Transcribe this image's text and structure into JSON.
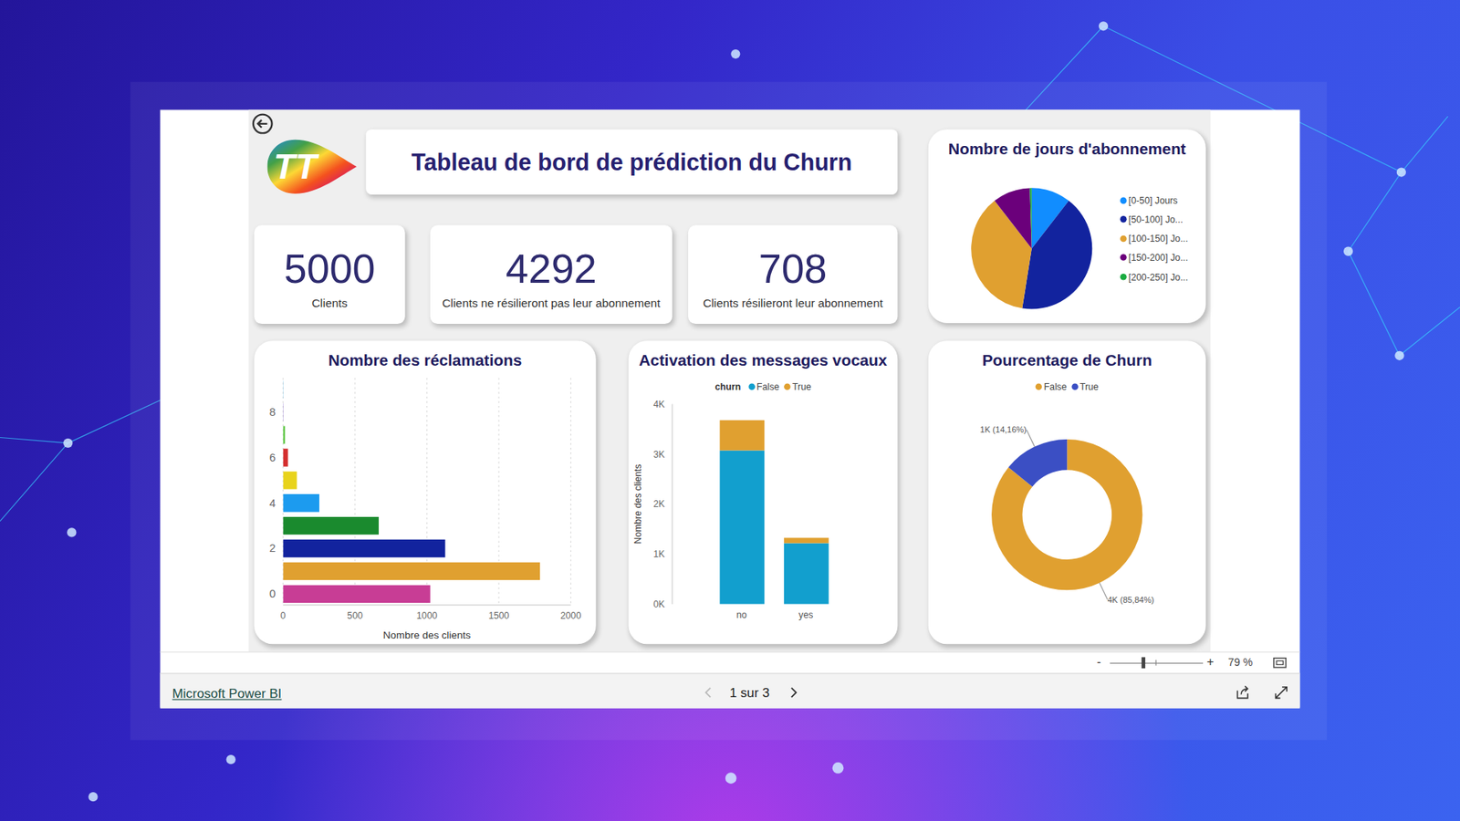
{
  "header": {
    "logo": "TT",
    "title": "Tableau de bord de prédiction du Churn"
  },
  "cards": [
    {
      "value": 5000,
      "label": "Clients"
    },
    {
      "value": 4292,
      "label": "Clients ne résilieront pas leur abonnement"
    },
    {
      "value": 708,
      "label": "Clients résilieront leur abonnement"
    }
  ],
  "chart_data": [
    {
      "type": "pie",
      "title": "Nombre de jours d'abonnement",
      "categories": [
        "[0-50] Jours",
        "[50-100] Jo...",
        "[100-150] Jo...",
        "[150-200] Jo...",
        "[200-250] Jo..."
      ],
      "values": [
        525,
        2100,
        1850,
        500,
        25
      ],
      "colors": [
        "#118DFF",
        "#12239E",
        "#E0A030",
        "#6B007B",
        "#1AAB40"
      ],
      "legend": "right"
    },
    {
      "type": "bar",
      "title": "Nombre des réclamations",
      "orientation": "horizontal",
      "categories": [
        "0",
        null,
        "2",
        null,
        "4",
        null,
        "6",
        null,
        "8",
        null
      ],
      "values": [
        1023,
        1786,
        1127,
        665,
        252,
        96,
        34,
        13,
        2,
        2
      ],
      "colors": [
        "#C83D95",
        "#E0A030",
        "#12239E",
        "#1A8A2E",
        "#1C9BEF",
        "#E8D31C",
        "#D42E2E",
        "#56C43A",
        "#744EC2",
        "#5FB8E8"
      ],
      "xlim": [
        0,
        2000
      ],
      "xticks": [
        0,
        500,
        1000,
        1500,
        2000
      ],
      "xlabel": "Nombre des clients",
      "grid": true
    },
    {
      "type": "bar",
      "title": "Activation des messages vocaux",
      "stacked": true,
      "legend": "top",
      "legend_title": "churn",
      "categories": [
        "no",
        "yes"
      ],
      "series": [
        {
          "name": "False",
          "color": "#129FCE",
          "values": [
            3072,
            1220
          ]
        },
        {
          "name": "True",
          "color": "#E0A030",
          "values": [
            605,
            103
          ]
        }
      ],
      "ylim": [
        0,
        4000
      ],
      "yticks": [
        {
          "value": 0,
          "label": "0K"
        },
        {
          "value": 1000,
          "label": "1K"
        },
        {
          "value": 2000,
          "label": "2K"
        },
        {
          "value": 3000,
          "label": "3K"
        },
        {
          "value": 4000,
          "label": "4K"
        }
      ],
      "ylabel": "Nombre des clients"
    },
    {
      "type": "donut",
      "title": "Pourcentage de Churn",
      "legend": "top",
      "categories": [
        "False",
        "True"
      ],
      "values": [
        4292,
        708
      ],
      "value_labels": [
        "4K (85,84%)",
        "1K (14,16%)"
      ],
      "colors": [
        "#E0A030",
        "#3B4FC4"
      ],
      "data_labels": true
    }
  ],
  "footer": {
    "zoom_out": "-",
    "zoom_in": "+",
    "zoom": "79 %",
    "brand": "Microsoft Power BI",
    "page": "1 sur 3"
  }
}
